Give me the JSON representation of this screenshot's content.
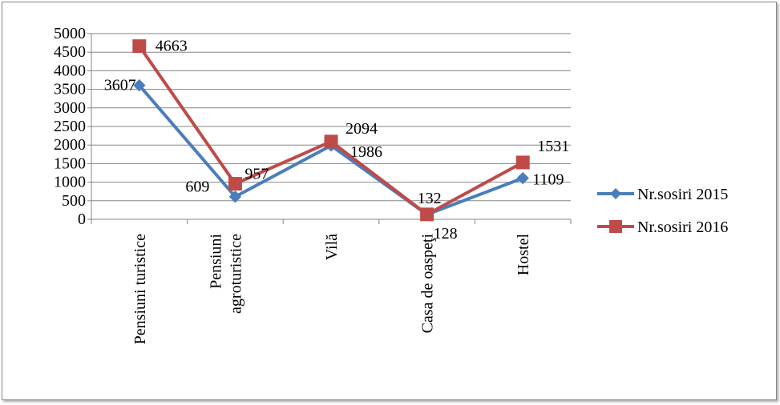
{
  "chart_data": {
    "type": "line",
    "title": "",
    "xlabel": "",
    "ylabel": "",
    "categories": [
      [
        "Pensiuni turistice"
      ],
      [
        "Pensiuni",
        "agroturistice"
      ],
      [
        "Vilă"
      ],
      [
        "Casa de oaspeţi"
      ],
      [
        "Hostel"
      ]
    ],
    "ylim": [
      0,
      5000
    ],
    "ytick_step": 500,
    "yticks": [
      "0",
      "500",
      "1000",
      "1500",
      "2000",
      "2500",
      "3000",
      "3500",
      "4000",
      "4500",
      "5000"
    ],
    "grid": true,
    "legend_position": "right",
    "series": [
      {
        "name": "Nr.sosiri 2015",
        "values": [
          3607,
          609,
          1986,
          128,
          1109
        ],
        "labels": [
          "3607",
          "609",
          "1986",
          "128",
          "1109"
        ],
        "color": "#4a7ebb",
        "marker": "diamond"
      },
      {
        "name": "Nr.sosiri 2016",
        "values": [
          4663,
          957,
          2094,
          132,
          1531
        ],
        "labels": [
          "4663",
          "957",
          "2094",
          "132",
          "1531"
        ],
        "color": "#be4b48",
        "marker": "square"
      }
    ]
  }
}
